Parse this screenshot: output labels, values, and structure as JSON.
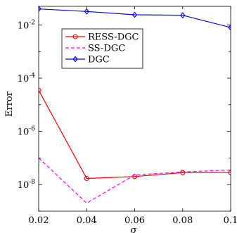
{
  "chart_data": {
    "type": "line",
    "title": "",
    "xlabel": "σ",
    "ylabel": "Error",
    "x": [
      0.02,
      0.04,
      0.06,
      0.08,
      0.1
    ],
    "xlim": [
      0.02,
      0.1
    ],
    "ylim": [
      1e-09,
      0.05
    ],
    "yscale": "log",
    "xticks": [
      "0.02",
      "0.04",
      "0.06",
      "0.08",
      "0.1"
    ],
    "yticks": [
      {
        "value": 1e-08,
        "base": "10",
        "exp": "-8"
      },
      {
        "value": 1e-06,
        "base": "10",
        "exp": "-6"
      },
      {
        "value": 0.0001,
        "base": "10",
        "exp": "-4"
      },
      {
        "value": 0.01,
        "base": "10",
        "exp": "-2"
      }
    ],
    "grid": false,
    "legend": "upper-left",
    "series": [
      {
        "name": "RESS-DGC",
        "color": "#ff0000",
        "line": "solid",
        "marker": "circle",
        "values": [
          3.5e-05,
          1.7e-08,
          2e-08,
          2.8e-08,
          2.8e-08
        ]
      },
      {
        "name": "SS-DGC",
        "color": "#ff00ff",
        "line": "dashed",
        "marker": "none",
        "values": [
          1e-07,
          2e-09,
          2.3e-08,
          3e-08,
          3.5e-08
        ]
      },
      {
        "name": "DGC",
        "color": "#0000ff",
        "line": "solid",
        "marker": "diamond",
        "values": [
          0.04,
          0.032,
          0.024,
          0.023,
          0.008
        ]
      }
    ]
  }
}
